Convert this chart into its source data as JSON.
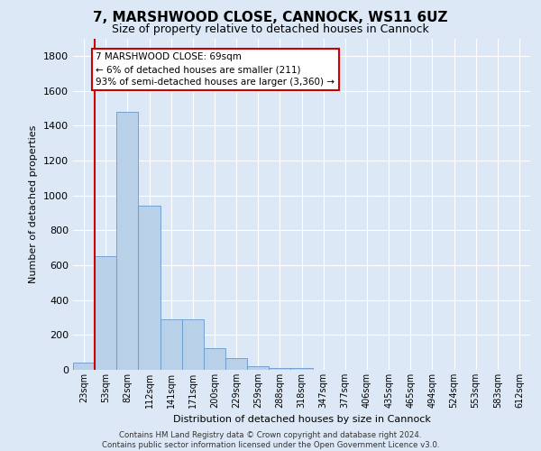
{
  "title_line1": "7, MARSHWOOD CLOSE, CANNOCK, WS11 6UZ",
  "title_line2": "Size of property relative to detached houses in Cannock",
  "xlabel": "Distribution of detached houses by size in Cannock",
  "ylabel": "Number of detached properties",
  "footnote": "Contains HM Land Registry data © Crown copyright and database right 2024.\nContains public sector information licensed under the Open Government Licence v3.0.",
  "bin_labels": [
    "23sqm",
    "53sqm",
    "82sqm",
    "112sqm",
    "141sqm",
    "171sqm",
    "200sqm",
    "229sqm",
    "259sqm",
    "288sqm",
    "318sqm",
    "347sqm",
    "377sqm",
    "406sqm",
    "435sqm",
    "465sqm",
    "494sqm",
    "524sqm",
    "553sqm",
    "583sqm",
    "612sqm"
  ],
  "bar_heights": [
    40,
    650,
    1480,
    940,
    290,
    290,
    125,
    65,
    20,
    10,
    10,
    0,
    0,
    0,
    0,
    0,
    0,
    0,
    0,
    0,
    0
  ],
  "bar_color": "#b8d0e8",
  "bar_edge_color": "#6699cc",
  "vline_x_idx": 1,
  "vline_color": "#cc0000",
  "annotation_text": "7 MARSHWOOD CLOSE: 69sqm\n← 6% of detached houses are smaller (211)\n93% of semi-detached houses are larger (3,360) →",
  "annotation_box_color": "white",
  "annotation_box_edge": "#cc0000",
  "ylim": [
    0,
    1900
  ],
  "yticks": [
    0,
    200,
    400,
    600,
    800,
    1000,
    1200,
    1400,
    1600,
    1800
  ],
  "background_color": "#dce8f5",
  "plot_bg_color": "#dce8f5",
  "grid_color": "#ffffff",
  "title_fontsize": 11,
  "subtitle_fontsize": 9,
  "ylabel_fontsize": 8,
  "xlabel_fontsize": 8,
  "ytick_fontsize": 8,
  "xtick_fontsize": 7,
  "annot_fontsize": 7.5,
  "footnote_fontsize": 6.2
}
